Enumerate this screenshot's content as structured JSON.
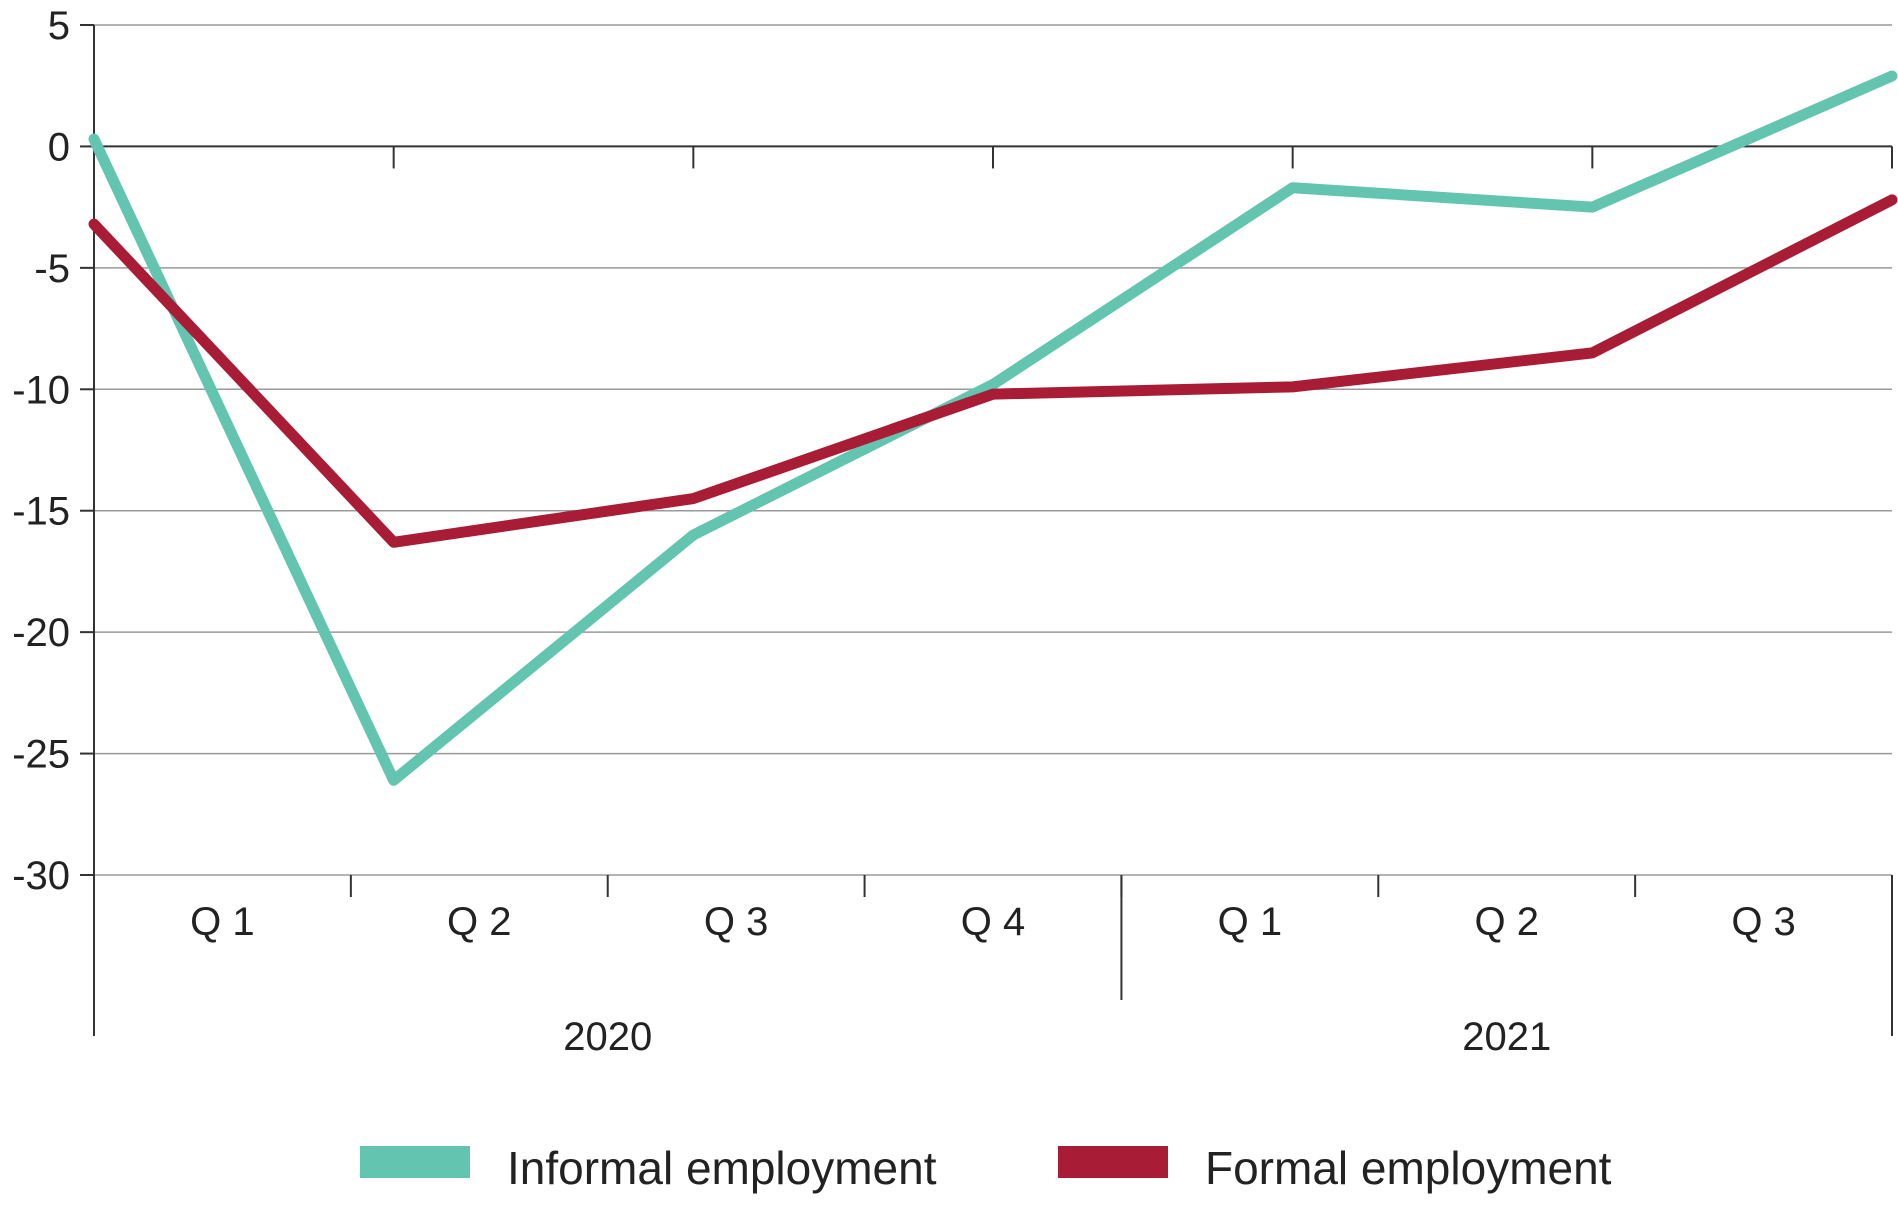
{
  "chart_data": {
    "type": "line",
    "title": "",
    "xlabel": "",
    "ylabel": "",
    "ylim": [
      -30,
      5
    ],
    "yticks": [
      5,
      0,
      -5,
      -10,
      -15,
      -20,
      -25,
      -30
    ],
    "grid": true,
    "legend_position": "bottom",
    "categories": [
      "Q 1",
      "Q 2",
      "Q 3",
      "Q 4",
      "Q 1",
      "Q 2",
      "Q 3"
    ],
    "groups": [
      {
        "label": "2020",
        "span": 4
      },
      {
        "label": "2021",
        "span": 3
      }
    ],
    "series": [
      {
        "name": "Informal employment",
        "color": "#63c4b0",
        "values": [
          0.3,
          -26.1,
          -16.0,
          -9.8,
          -1.7,
          -2.5,
          2.9
        ]
      },
      {
        "name": "Formal employment",
        "color": "#a81c35",
        "values": [
          -3.2,
          -16.3,
          -14.5,
          -10.2,
          -9.9,
          -8.5,
          -2.2
        ]
      }
    ]
  }
}
